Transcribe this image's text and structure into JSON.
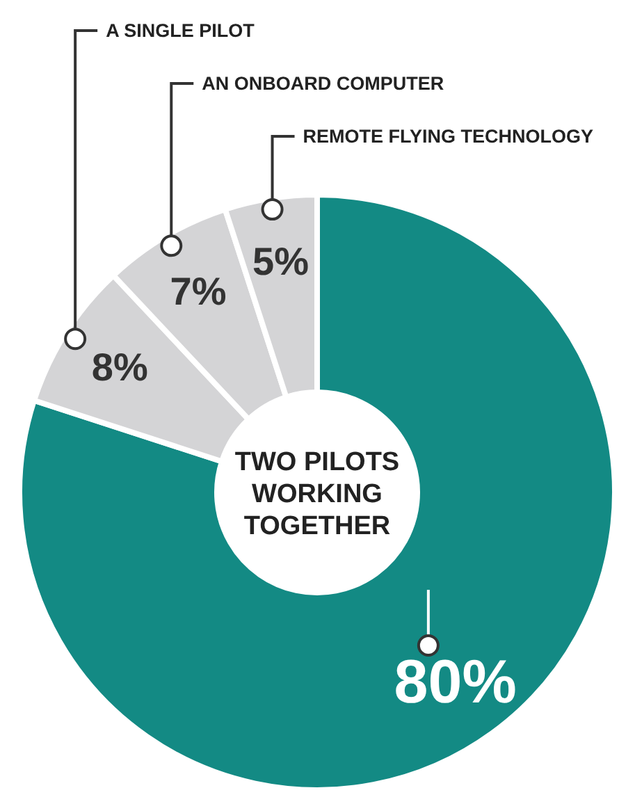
{
  "chart_data": {
    "type": "donut",
    "categories": [
      "TWO PILOTS WORKING TOGETHER",
      "A SINGLE PILOT",
      "AN ONBOARD COMPUTER",
      "REMOTE FLYING TECHNOLOGY"
    ],
    "values": [
      80,
      8,
      7,
      5
    ],
    "colors": [
      "#138a84",
      "#d4d4d6",
      "#d4d4d6",
      "#d4d4d6"
    ],
    "value_labels": [
      "80%",
      "8%",
      "7%",
      "5%"
    ]
  }
}
